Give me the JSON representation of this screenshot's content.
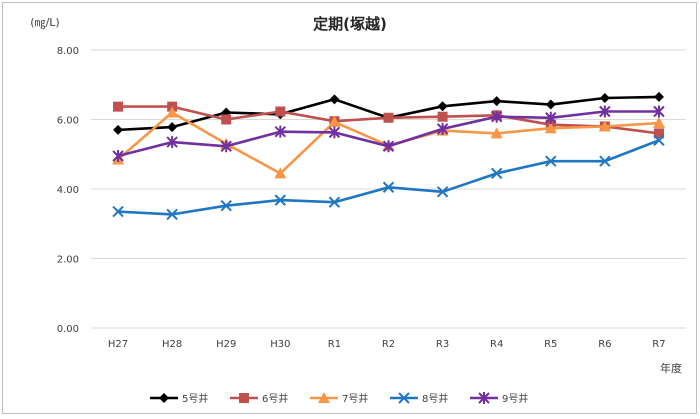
{
  "chart_data": {
    "type": "line",
    "title": "定期(塚越)",
    "ylabel": "(㎎/L)",
    "xlabel": "年度",
    "ylim": [
      0,
      8
    ],
    "yticks": [
      0,
      2,
      4,
      6,
      8
    ],
    "ytick_labels": [
      "0.00",
      "2.00",
      "4.00",
      "6.00",
      "8.00"
    ],
    "grid": true,
    "legend_position": "bottom",
    "categories": [
      "H27",
      "H28",
      "H29",
      "H30",
      "R1",
      "R2",
      "R3",
      "R4",
      "R5",
      "R6",
      "R7"
    ],
    "series": [
      {
        "name": "5号井",
        "color": "#000000",
        "marker": "diamond",
        "values": [
          5.7,
          5.78,
          6.2,
          6.15,
          6.58,
          6.05,
          6.38,
          6.53,
          6.43,
          6.62,
          6.65
        ]
      },
      {
        "name": "6号井",
        "color": "#c0504d",
        "marker": "square",
        "values": [
          6.37,
          6.37,
          6.0,
          6.23,
          5.95,
          6.05,
          6.08,
          6.12,
          5.85,
          5.8,
          5.6
        ]
      },
      {
        "name": "7号井",
        "color": "#f79646",
        "marker": "triangle",
        "values": [
          4.85,
          6.2,
          5.3,
          4.45,
          5.93,
          5.25,
          5.68,
          5.6,
          5.75,
          5.8,
          5.9
        ]
      },
      {
        "name": "8号井",
        "color": "#1f77c4",
        "marker": "x",
        "values": [
          3.35,
          3.27,
          3.52,
          3.68,
          3.62,
          4.05,
          3.92,
          4.45,
          4.8,
          4.8,
          5.4
        ]
      },
      {
        "name": "9号井",
        "color": "#7030a0",
        "marker": "star",
        "values": [
          4.95,
          5.35,
          5.23,
          5.65,
          5.63,
          5.23,
          5.73,
          6.08,
          6.05,
          6.23,
          6.23
        ]
      }
    ]
  }
}
